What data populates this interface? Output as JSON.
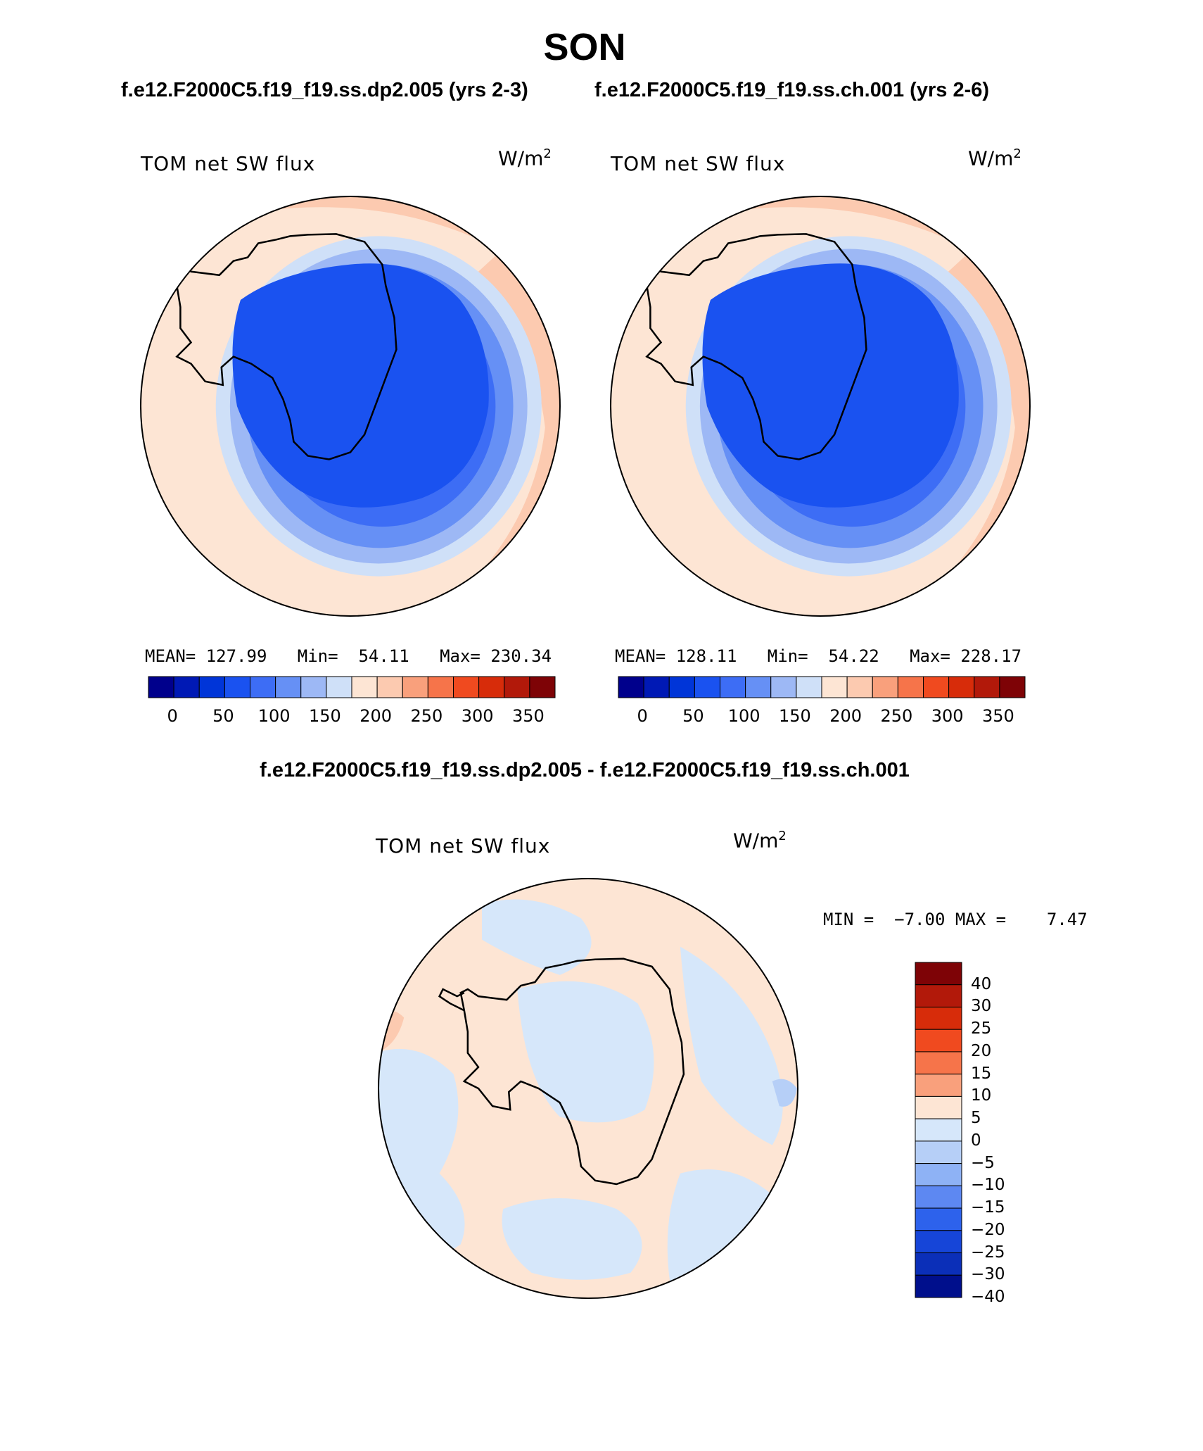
{
  "page_title": "SON",
  "subtitles": {
    "left": "f.e12.F2000C5.f19_f19.ss.dp2.005 (yrs 2-3)",
    "right": "f.e12.F2000C5.f19_f19.ss.ch.001 (yrs 2-6)",
    "diff": "f.e12.F2000C5.f19_f19.ss.dp2.005 - f.e12.F2000C5.f19_f19.ss.ch.001"
  },
  "maps": [
    {
      "variable": "TOM net SW flux",
      "units_base": "W/m",
      "units_sup": "2",
      "stats": {
        "mean_label": "MEAN=",
        "mean": "127.99",
        "min_label": "Min=",
        "min": "54.11",
        "max_label": "Max=",
        "max": "230.34"
      }
    },
    {
      "variable": "TOM net SW flux",
      "units_base": "W/m",
      "units_sup": "2",
      "stats": {
        "mean_label": "MEAN=",
        "mean": "128.11",
        "min_label": "Min=",
        "min": "54.22",
        "max_label": "Max=",
        "max": "228.17"
      }
    },
    {
      "variable": "TOM net SW flux",
      "units_base": "W/m",
      "units_sup": "2",
      "stats": {
        "min_label": "MIN =",
        "min": "−7.00",
        "max_label": "MAX =",
        "max": "7.47"
      }
    }
  ],
  "colorbar_abs": {
    "colors": [
      "#00008c",
      "#0019b5",
      "#0035d8",
      "#1a52f0",
      "#3d6df5",
      "#6690f5",
      "#9db8f5",
      "#cfe0f8",
      "#fde5d4",
      "#fccab0",
      "#f9a07c",
      "#f6744a",
      "#f04a1f",
      "#d72c0a",
      "#b2190a",
      "#7e0306"
    ],
    "labels": [
      "0",
      "50",
      "100",
      "150",
      "200",
      "250",
      "300",
      "350"
    ]
  },
  "colorbar_diff": {
    "colors": [
      "#7e0306",
      "#b2190a",
      "#d72c0a",
      "#f04a1f",
      "#f6744a",
      "#f9a07c",
      "#fde5d4",
      "#d6e7fa",
      "#b6cff7",
      "#8eb2f5",
      "#5d88f2",
      "#2d62ec",
      "#1645d8",
      "#0b2fb8",
      "#000f8c"
    ],
    "labels": [
      "40",
      "30",
      "25",
      "20",
      "15",
      "10",
      "5",
      "0",
      "−5",
      "−10",
      "−15",
      "−20",
      "−25",
      "−30",
      "−40"
    ]
  }
}
